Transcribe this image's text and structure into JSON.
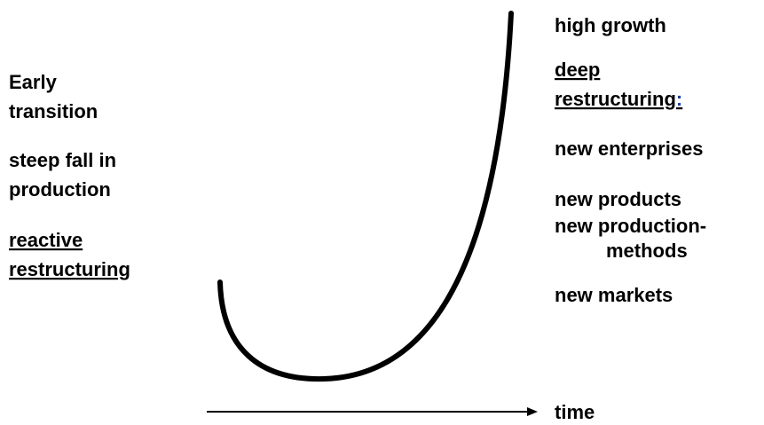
{
  "left": {
    "early": [
      "Early",
      "transition"
    ],
    "fall": [
      "steep fall in",
      "production"
    ],
    "reactive": [
      "reactive",
      "restructuring"
    ]
  },
  "right": {
    "growth": "high growth",
    "deep": [
      "deep",
      "restructuring",
      ":"
    ],
    "items": [
      "new enterprises",
      "new products",
      "new production-",
      "methods",
      "new markets"
    ]
  },
  "axis_label": "time"
}
